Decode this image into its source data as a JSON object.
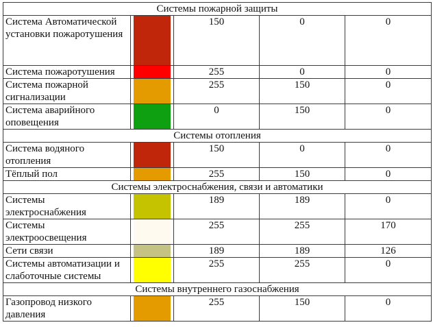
{
  "sections": [
    {
      "title": "Системы пожарной защиты",
      "rows": [
        {
          "name": "Система Автоматической установки пожаротушения",
          "color": "#c0260a",
          "r": "150",
          "g": "0",
          "b": "0",
          "lines": 4
        },
        {
          "name": "Система пожаротушения",
          "color": "#ff0000",
          "r": "255",
          "g": "0",
          "b": "0",
          "lines": 1
        },
        {
          "name": "Система пожарной сигнализации",
          "color": "#e39b00",
          "r": "255",
          "g": "150",
          "b": "0",
          "lines": 2
        },
        {
          "name": "Система аварийного оповещения",
          "color": "#0ea010",
          "r": "0",
          "g": "150",
          "b": "0",
          "lines": 2
        }
      ]
    },
    {
      "title": "Системы отопления",
      "rows": [
        {
          "name": "Система водяного отопления",
          "color": "#c0260a",
          "r": "150",
          "g": "0",
          "b": "0",
          "lines": 2
        },
        {
          "name": "Тёплый пол",
          "color": "#e39b00",
          "r": "255",
          "g": "150",
          "b": "0",
          "lines": 1
        }
      ]
    },
    {
      "title": "Системы электроснабжения, связи и автоматики",
      "rows": [
        {
          "name": "Системы электроснабжения",
          "color": "#c5c300",
          "r": "189",
          "g": "189",
          "b": "0",
          "lines": 2
        },
        {
          "name": "Системы электроосвещения",
          "color": "#fffaf0",
          "r": "255",
          "g": "255",
          "b": "170",
          "lines": 2
        },
        {
          "name": "Сети связи",
          "color": "#c5c384",
          "r": "189",
          "g": "189",
          "b": "126",
          "lines": 1
        },
        {
          "name": "Системы автоматизации и слаботочные системы",
          "color": "#ffff00",
          "r": "255",
          "g": "255",
          "b": "0",
          "lines": 2
        }
      ]
    },
    {
      "title": "Системы внутреннего газоснабжения",
      "rows": [
        {
          "name": "Газопровод низкого давления",
          "color": "#e39b00",
          "r": "255",
          "g": "150",
          "b": "0",
          "lines": 2
        }
      ]
    }
  ]
}
